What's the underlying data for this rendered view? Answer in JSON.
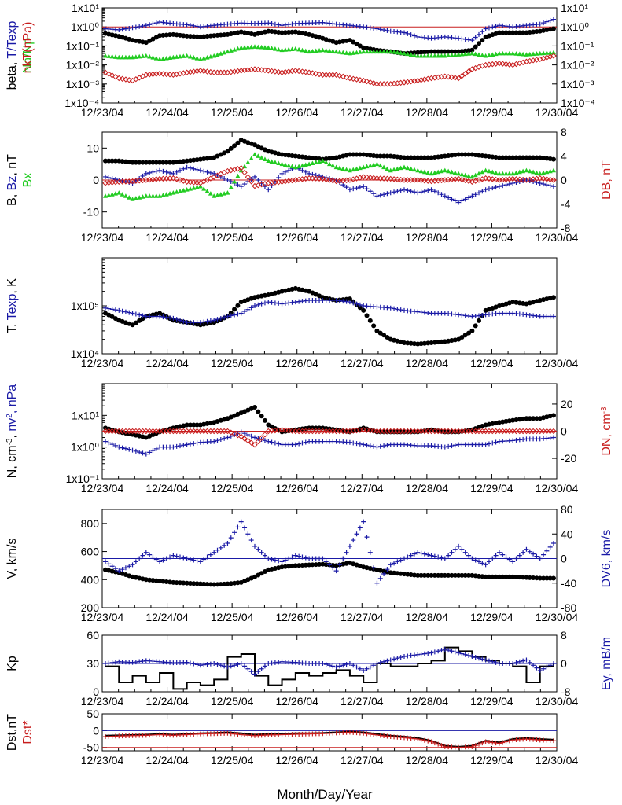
{
  "colors": {
    "black": "#000000",
    "blue": "#1a1aa6",
    "red": "#c81e1e",
    "green": "#22cc22",
    "axis": "#000000"
  },
  "x_ticks": [
    "12/23/04",
    "12/24/04",
    "12/25/04",
    "12/26/04",
    "12/27/04",
    "12/28/04",
    "12/29/04",
    "12/30/04"
  ],
  "x_title": "Month/Day/Year",
  "chart_data": [
    {
      "type": "scatter",
      "id": "p1",
      "ylabel_parts": [
        {
          "t": "beta, ",
          "c": "black"
        },
        {
          "t": "T/Texp",
          "c": "blue"
        }
      ],
      "ylabel2_parts": [
        {
          "t": "nkT(nPa)",
          "c": "red"
        }
      ],
      "ylabel3_parts": [
        {
          "t": "Na/Np",
          "c": "green"
        }
      ],
      "yscale": "log",
      "ylim": [
        0.0001,
        10
      ],
      "left_ticks": [
        "1x10¹",
        "1x10⁰",
        "1x10⁻¹",
        "1x10⁻²",
        "1x10⁻³",
        "1x10⁻⁴"
      ],
      "right_ticks": [
        "1x10¹",
        "1x10⁰",
        "1x10⁻¹",
        "1x10⁻²",
        "1x10⁻³",
        "1x10⁻⁴"
      ],
      "hline": {
        "y": 1,
        "color": "red"
      },
      "series": [
        {
          "id": "beta",
          "color": "black",
          "marker": "dot",
          "y": [
            0.45,
            0.32,
            0.2,
            0.15,
            0.35,
            0.4,
            0.33,
            0.3,
            0.35,
            0.4,
            0.55,
            0.4,
            0.6,
            0.5,
            0.55,
            0.4,
            0.25,
            0.15,
            0.2,
            0.08,
            0.06,
            0.05,
            0.04,
            0.045,
            0.05,
            0.05,
            0.05,
            0.06,
            0.3,
            0.5,
            0.5,
            0.5,
            0.6,
            0.8
          ]
        },
        {
          "id": "t_texp",
          "color": "blue",
          "marker": "plus",
          "y": [
            0.8,
            0.7,
            0.9,
            1.2,
            1.8,
            1.5,
            1.3,
            1.0,
            1.2,
            1.4,
            1.6,
            1.5,
            1.6,
            1.2,
            1.5,
            1.6,
            1.7,
            1.4,
            1.2,
            1.0,
            0.8,
            0.6,
            0.5,
            0.3,
            0.25,
            0.3,
            0.25,
            0.2,
            0.8,
            1.2,
            1.0,
            1.2,
            1.4,
            2.5
          ]
        },
        {
          "id": "na_np",
          "color": "green",
          "marker": "tri",
          "y": [
            0.03,
            0.025,
            0.025,
            0.03,
            0.02,
            0.025,
            0.03,
            0.02,
            0.03,
            0.05,
            0.08,
            0.09,
            0.08,
            0.06,
            0.07,
            0.05,
            0.06,
            0.05,
            0.04,
            0.05,
            0.05,
            0.05,
            0.04,
            0.03,
            0.03,
            0.03,
            0.035,
            0.04,
            0.03,
            0.04,
            0.04,
            0.035,
            0.04,
            0.045
          ]
        },
        {
          "id": "nkt",
          "color": "red",
          "marker": "diamond",
          "y": [
            0.004,
            0.002,
            0.0015,
            0.003,
            0.0035,
            0.003,
            0.004,
            0.005,
            0.004,
            0.004,
            0.005,
            0.006,
            0.005,
            0.004,
            0.005,
            0.004,
            0.003,
            0.003,
            0.002,
            0.0015,
            0.001,
            0.001,
            0.0012,
            0.0015,
            0.002,
            0.0025,
            0.002,
            0.006,
            0.01,
            0.012,
            0.01,
            0.015,
            0.02,
            0.03
          ]
        }
      ]
    },
    {
      "type": "scatter",
      "id": "p2",
      "ylabel_parts": [
        {
          "t": "B, ",
          "c": "black"
        },
        {
          "t": "Bz",
          "c": "blue"
        },
        {
          "t": ", nT",
          "c": "black"
        }
      ],
      "ylabel3_parts": [
        {
          "t": "Bx",
          "c": "green"
        }
      ],
      "ylabel2_parts": [
        {
          "t": "DB, nT",
          "c": "red"
        }
      ],
      "yscale": "linear",
      "ylim": [
        -15,
        15
      ],
      "y2lim": [
        -8,
        8
      ],
      "left_ticks": [
        "10",
        "0",
        "-10"
      ],
      "left_tick_vals": [
        10,
        0,
        -10
      ],
      "right_ticks": [
        "8",
        "4",
        "0",
        "-4",
        "-8"
      ],
      "right_tick_vals": [
        8,
        4,
        0,
        -4,
        -8
      ],
      "hline": {
        "y": 0,
        "color": "red"
      },
      "series": [
        {
          "id": "B",
          "color": "black",
          "marker": "dot",
          "y": [
            6,
            6,
            5.5,
            5.5,
            5.5,
            5.5,
            6,
            6.5,
            7,
            9,
            12.5,
            11,
            9,
            8,
            7.5,
            7,
            6.5,
            7,
            8,
            8,
            7.5,
            7.5,
            7,
            7,
            7,
            7.5,
            8,
            8,
            7.5,
            7,
            7,
            7,
            7,
            6.5
          ]
        },
        {
          "id": "Bz",
          "color": "blue",
          "marker": "plus",
          "y": [
            1,
            0,
            -1,
            2,
            3,
            2,
            4,
            3,
            2,
            0,
            -2,
            1,
            -3,
            2,
            4,
            2,
            1,
            0,
            -3,
            -2,
            -5,
            -4,
            -3,
            -4,
            -3,
            -5,
            -7,
            -5,
            -3,
            -2,
            -1,
            0,
            -1,
            -2
          ]
        },
        {
          "id": "Bx",
          "color": "green",
          "marker": "tri",
          "y": [
            -5,
            -4,
            -6,
            -5,
            -5,
            -4,
            -3,
            -2,
            -5,
            -4,
            3,
            8,
            6,
            5,
            4,
            5,
            6,
            4,
            3,
            4,
            5,
            3,
            4,
            3,
            2,
            3,
            2,
            1,
            3,
            2,
            2,
            3,
            2,
            3
          ]
        },
        {
          "id": "DB",
          "color": "red",
          "marker": "diamond",
          "y2": [
            -0.5,
            -0.3,
            -0.2,
            0,
            0.2,
            0.3,
            -0.3,
            -0.5,
            0.5,
            1.5,
            2,
            -1,
            -0.5,
            -0.3,
            0,
            0.3,
            0.2,
            -0.2,
            0,
            0.5,
            0.3,
            0.2,
            0,
            0,
            -0.2,
            0,
            0.2,
            -0.3,
            0.3,
            0,
            0.2,
            0,
            0.3,
            0
          ]
        }
      ]
    },
    {
      "type": "scatter",
      "id": "p3",
      "ylabel_parts": [
        {
          "t": "T, ",
          "c": "black"
        },
        {
          "t": "Texp",
          "c": "blue"
        },
        {
          "t": ", K",
          "c": "black"
        }
      ],
      "yscale": "log",
      "ylim": [
        10000,
        1000000
      ],
      "left_ticks": [
        "1x10⁵",
        "1x10⁴"
      ],
      "left_tick_vals": [
        100000,
        10000
      ],
      "series": [
        {
          "id": "T",
          "color": "black",
          "marker": "dot",
          "y": [
            70000,
            50000,
            40000,
            60000,
            70000,
            50000,
            45000,
            40000,
            45000,
            60000,
            120000,
            150000,
            170000,
            200000,
            230000,
            200000,
            150000,
            130000,
            140000,
            80000,
            30000,
            20000,
            17000,
            16000,
            17000,
            18000,
            20000,
            30000,
            80000,
            100000,
            120000,
            110000,
            130000,
            150000
          ]
        },
        {
          "id": "Texp",
          "color": "blue",
          "marker": "plus",
          "y": [
            90000,
            80000,
            70000,
            60000,
            60000,
            55000,
            45000,
            45000,
            50000,
            60000,
            70000,
            100000,
            120000,
            110000,
            120000,
            130000,
            130000,
            130000,
            120000,
            100000,
            95000,
            90000,
            80000,
            75000,
            70000,
            70000,
            65000,
            60000,
            65000,
            70000,
            70000,
            65000,
            60000,
            60000
          ]
        }
      ]
    },
    {
      "type": "scatter",
      "id": "p4",
      "ylabel_parts": [
        {
          "t": "N, cm",
          "c": "black"
        },
        {
          "t": "-3",
          "c": "black",
          "sup": true
        },
        {
          "t": ", ",
          "c": "black"
        },
        {
          "t": "nv",
          "c": "blue"
        },
        {
          "t": "2",
          "c": "blue",
          "sup": true
        },
        {
          "t": ", nPa",
          "c": "blue"
        }
      ],
      "ylabel2_parts": [
        {
          "t": "DN, cm",
          "c": "red"
        },
        {
          "t": "-3",
          "c": "red",
          "sup": true
        }
      ],
      "yscale": "log",
      "ylim": [
        0.1,
        100
      ],
      "y2lim": [
        -35,
        35
      ],
      "left_ticks": [
        "1x10¹",
        "1x10⁰",
        "1x10⁻¹"
      ],
      "left_tick_vals": [
        10,
        1,
        0.1
      ],
      "right_ticks": [
        "20",
        "0",
        "-20"
      ],
      "right_tick_vals": [
        20,
        0,
        -20
      ],
      "hline": {
        "y2": 0,
        "color": "red"
      },
      "series": [
        {
          "id": "N",
          "color": "black",
          "marker": "dot",
          "y": [
            4,
            3,
            2.5,
            2,
            3,
            4,
            5,
            5,
            6,
            8,
            12,
            18,
            5,
            3,
            3.5,
            4,
            4,
            3.5,
            3,
            4,
            3,
            3,
            3,
            3,
            3.5,
            3,
            3,
            3.5,
            5,
            6,
            7,
            8,
            8,
            10
          ]
        },
        {
          "id": "nv2",
          "color": "blue",
          "marker": "plus",
          "y": [
            1.5,
            1,
            0.8,
            0.6,
            1,
            1,
            1.2,
            1.4,
            1.5,
            2,
            3,
            2,
            1.5,
            1.2,
            1.2,
            1.5,
            1.5,
            1.5,
            1.4,
            1.2,
            1,
            1.2,
            1.2,
            1.1,
            1.1,
            1,
            1.2,
            1.2,
            1.2,
            1.5,
            1.6,
            1.8,
            1.8,
            2
          ]
        },
        {
          "id": "DN",
          "color": "red",
          "marker": "diamond",
          "y2": [
            0,
            0,
            0,
            0,
            0,
            0,
            0,
            0,
            0,
            0,
            -4,
            -10,
            0,
            1,
            0,
            0,
            0,
            0,
            0,
            1,
            0,
            0,
            0,
            0,
            0,
            0,
            0,
            0,
            0,
            0,
            0,
            0,
            0,
            0
          ]
        }
      ]
    },
    {
      "type": "scatter",
      "id": "p5",
      "ylabel_parts": [
        {
          "t": "V, km/s",
          "c": "black"
        }
      ],
      "ylabel2_parts": [
        {
          "t": "DV6, km/s",
          "c": "blue"
        }
      ],
      "yscale": "linear",
      "ylim": [
        200,
        900
      ],
      "y2lim": [
        -80,
        80
      ],
      "left_ticks": [
        "800",
        "600",
        "400",
        "200"
      ],
      "left_tick_vals": [
        800,
        600,
        400,
        200
      ],
      "right_ticks": [
        "80",
        "40",
        "0",
        "-40",
        "-80"
      ],
      "right_tick_vals": [
        80,
        40,
        0,
        -40,
        -80
      ],
      "hline": {
        "y2": 0,
        "color": "blue"
      },
      "series": [
        {
          "id": "V",
          "color": "black",
          "marker": "dot",
          "y": [
            470,
            450,
            420,
            400,
            390,
            380,
            375,
            370,
            365,
            370,
            380,
            420,
            470,
            490,
            500,
            505,
            510,
            500,
            520,
            490,
            470,
            450,
            440,
            430,
            430,
            430,
            430,
            430,
            420,
            420,
            420,
            415,
            410,
            410
          ]
        },
        {
          "id": "DV6",
          "color": "blue",
          "marker": "plus",
          "y2": [
            -5,
            -20,
            -10,
            10,
            -5,
            5,
            0,
            -5,
            10,
            25,
            60,
            20,
            0,
            -5,
            5,
            0,
            0,
            -20,
            20,
            60,
            -40,
            -10,
            0,
            10,
            5,
            0,
            20,
            0,
            -10,
            10,
            -5,
            15,
            0,
            25
          ]
        }
      ]
    },
    {
      "type": "line",
      "id": "p6",
      "ylabel_parts": [
        {
          "t": "Kp",
          "c": "black"
        }
      ],
      "ylabel2_parts": [
        {
          "t": "Ey, ",
          "c": "blue"
        },
        {
          "t": " mB/m",
          "c": "blue"
        }
      ],
      "yscale": "linear",
      "ylim": [
        0,
        60
      ],
      "y2lim": [
        -8,
        8
      ],
      "left_ticks": [
        "60",
        "30",
        "0"
      ],
      "left_tick_vals": [
        60,
        30,
        0
      ],
      "right_ticks": [
        "8",
        "0",
        "-8"
      ],
      "right_tick_vals": [
        8,
        0,
        -8
      ],
      "hline": {
        "y2": 0,
        "color": "blue"
      },
      "series": [
        {
          "id": "Kp",
          "color": "black",
          "marker": "step",
          "y": [
            27,
            10,
            17,
            10,
            20,
            3,
            10,
            7,
            13,
            37,
            40,
            17,
            7,
            13,
            20,
            17,
            20,
            23,
            17,
            10,
            30,
            27,
            27,
            30,
            33,
            47,
            43,
            37,
            33,
            30,
            27,
            10,
            27,
            30
          ]
        },
        {
          "id": "Ey",
          "color": "blue",
          "marker": "plus",
          "y2": [
            0,
            0.5,
            0.3,
            0.8,
            0.5,
            0.2,
            0.3,
            -0.5,
            0,
            -1,
            0,
            -3,
            0,
            0.5,
            0.3,
            0,
            0,
            -1,
            0,
            -2,
            0,
            1,
            2,
            2.5,
            3,
            4,
            3,
            2,
            1,
            0,
            0,
            1,
            -2,
            0
          ]
        }
      ]
    },
    {
      "type": "line",
      "id": "p7",
      "ylabel_parts": [
        {
          "t": "Dst,nT",
          "c": "black"
        }
      ],
      "ylabel3_parts": [
        {
          "t": "Dst*",
          "c": "red"
        }
      ],
      "yscale": "linear",
      "ylim": [
        -60,
        50
      ],
      "left_ticks": [
        "50",
        "0",
        "-50"
      ],
      "left_tick_vals": [
        50,
        0,
        -50
      ],
      "hlines": [
        {
          "y": 0,
          "color": "blue"
        },
        {
          "y": -50,
          "color": "red"
        }
      ],
      "series": [
        {
          "id": "Dst",
          "color": "black",
          "marker": "line",
          "y": [
            -15,
            -14,
            -13,
            -12,
            -10,
            -12,
            -10,
            -8,
            -7,
            -5,
            -8,
            -12,
            -10,
            -9,
            -8,
            -8,
            -7,
            -5,
            -3,
            -5,
            -10,
            -15,
            -18,
            -22,
            -30,
            -45,
            -48,
            -45,
            -30,
            -35,
            -25,
            -22,
            -25,
            -27
          ]
        },
        {
          "id": "DstStar",
          "color": "red",
          "marker": "plus",
          "y": [
            -18,
            -16,
            -15,
            -14,
            -12,
            -14,
            -12,
            -10,
            -9,
            -8,
            -12,
            -15,
            -13,
            -12,
            -11,
            -10,
            -9,
            -7,
            -5,
            -8,
            -13,
            -18,
            -21,
            -25,
            -33,
            -48,
            -50,
            -48,
            -33,
            -38,
            -28,
            -25,
            -28,
            -30
          ]
        }
      ]
    }
  ]
}
